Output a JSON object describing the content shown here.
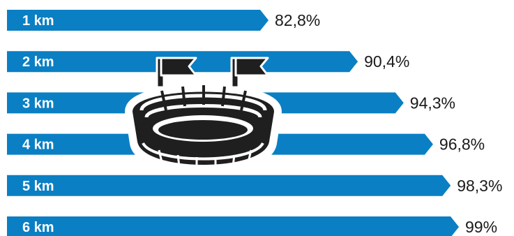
{
  "chart_data": {
    "type": "bar",
    "orientation": "horizontal",
    "categories": [
      "1 km",
      "2 km",
      "3 km",
      "4 km",
      "5 km",
      "6 km"
    ],
    "values": [
      82.8,
      90.4,
      94.3,
      96.8,
      98.3,
      99
    ],
    "value_labels": [
      "82,8%",
      "90,4%",
      "94,3%",
      "96,8%",
      "98,3%",
      "99%"
    ],
    "xlim": [
      0,
      100
    ],
    "grid": false,
    "legend": "none",
    "bar_color": "#0a7fc4",
    "icon": "stadium-icon"
  }
}
